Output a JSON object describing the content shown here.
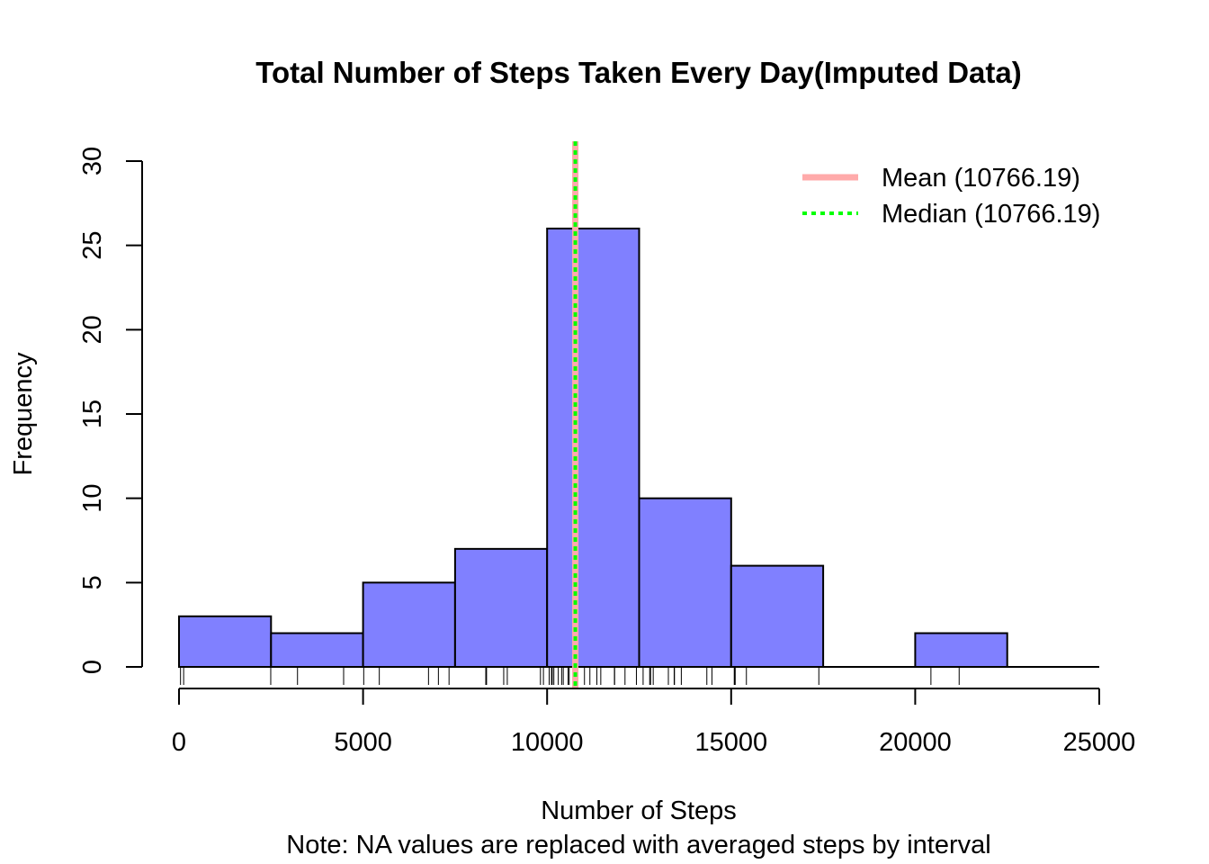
{
  "chart_data": {
    "type": "bar",
    "title": "Total Number of Steps Taken Every Day(Imputed Data)",
    "xlabel": "Number of Steps",
    "note": "Note: NA values are replaced with averaged steps by interval",
    "ylabel": "Frequency",
    "xlim": [
      0,
      25000
    ],
    "ylim": [
      0,
      30
    ],
    "x_ticks": [
      0,
      5000,
      10000,
      15000,
      20000,
      25000
    ],
    "y_ticks": [
      0,
      5,
      10,
      15,
      20,
      25,
      30
    ],
    "bin_edges": [
      0,
      2500,
      5000,
      7500,
      10000,
      12500,
      15000,
      17500,
      20000,
      22500
    ],
    "values": [
      3,
      2,
      5,
      7,
      26,
      10,
      6,
      0,
      2
    ],
    "bar_color": "#8080ff",
    "rug": [
      41,
      126,
      2492,
      3219,
      4472,
      5018,
      5441,
      6778,
      7047,
      7336,
      8334,
      8355,
      8821,
      8918,
      9819,
      9900,
      10056,
      10119,
      10139,
      10183,
      10304,
      10395,
      10439,
      10571,
      10600,
      10766,
      10765,
      11015,
      11162,
      11352,
      11458,
      11829,
      11834,
      12116,
      12426,
      12608,
      12787,
      12811,
      12883,
      13294,
      13452,
      13460,
      13646,
      14339,
      14478,
      15084,
      15098,
      15110,
      15414,
      17382,
      20427,
      21194
    ],
    "legend": {
      "position": "top-right",
      "items": [
        {
          "label": "Mean (10766.19)",
          "color": "#ffaaaa",
          "style": "solid"
        },
        {
          "label": "Median (10766.19)",
          "color": "#00ff00",
          "style": "dotted"
        }
      ]
    },
    "mean": 10766.19,
    "median": 10766.19,
    "mean_color": "#ffaaaa",
    "median_color": "#00ff00"
  }
}
